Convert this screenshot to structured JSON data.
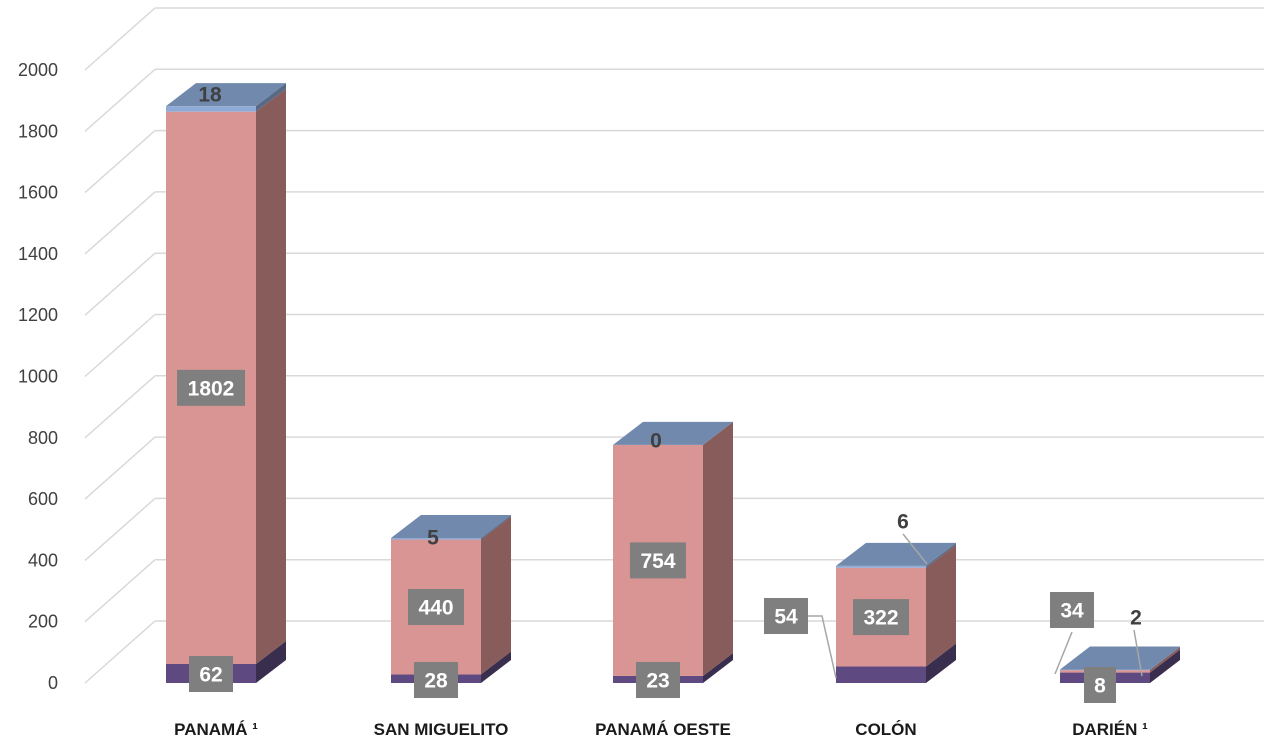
{
  "chart_data": {
    "type": "bar",
    "stacked": true,
    "three_d": true,
    "ylim": [
      0,
      2000
    ],
    "yticks": [
      0,
      200,
      400,
      600,
      800,
      1000,
      1200,
      1400,
      1600,
      1800,
      2000
    ],
    "grid": true,
    "legend": "none",
    "categories": [
      "PANAMÁ ¹",
      "SAN MIGUELITO",
      "PANAMÁ OESTE",
      "COLÓN",
      "DARIÉN  ¹"
    ],
    "series": [
      {
        "values": [
          62,
          28,
          23,
          54,
          34
        ],
        "color": "#5e4a80"
      },
      {
        "values": [
          1802,
          440,
          754,
          322,
          8
        ],
        "color": "#d99593"
      },
      {
        "values": [
          18,
          5,
          0,
          6,
          2
        ],
        "color": "#8eaad6"
      }
    ],
    "data_labels": [
      [
        "62",
        "1802",
        "18"
      ],
      [
        "28",
        "440",
        "5"
      ],
      [
        "23",
        "754",
        "0"
      ],
      [
        "54",
        "322",
        "6"
      ],
      [
        "34",
        "8",
        "2"
      ]
    ],
    "colors": {
      "top_face": "#7089ad",
      "grid": "#d9d9d9",
      "label_box": "#7f7f7f",
      "label_box_text": "#ffffff",
      "plain_label_text": "#404040"
    }
  }
}
